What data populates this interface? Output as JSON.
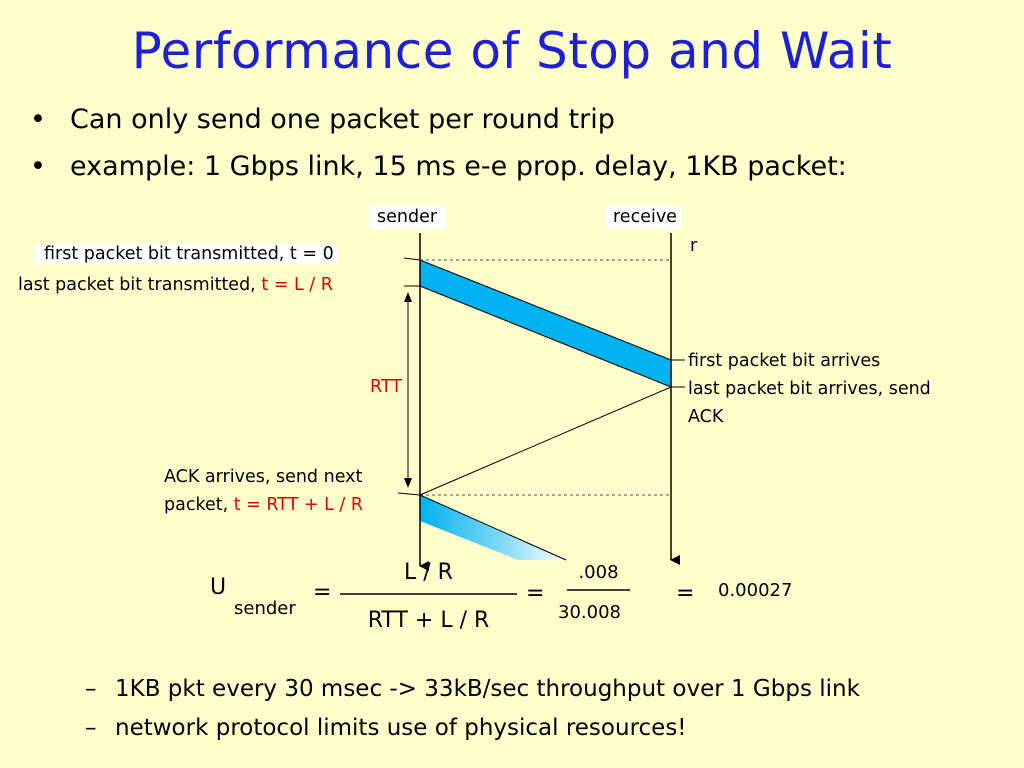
{
  "title": "Performance of Stop and Wait",
  "bullets": [
    "Can only send one packet per round trip",
    "example: 1 Gbps link, 15 ms e-e prop. delay, 1KB packet:"
  ],
  "bullet_glyph": "•",
  "diagram": {
    "sender_label": "sender",
    "receiver_label_line1": "receive",
    "receiver_label_line2": "r",
    "first_bit_tx": "first packet bit transmitted, t = 0",
    "last_bit_tx_prefix": "last packet bit transmitted, ",
    "last_bit_tx_time": "t = L / R",
    "rtt_label": "RTT",
    "first_bit_arrives": "first packet bit arrives",
    "last_bit_arrives_line1": "last packet bit arrives, send",
    "last_bit_arrives_line2": "ACK",
    "ack_arrives_line1": "ACK arrives, send next",
    "ack_arrives_prefix": "packet, ",
    "ack_arrives_time": "t = RTT + L / R",
    "packet_color": "#00B2F0"
  },
  "formula": {
    "u": "U",
    "u_sub": "sender",
    "eq1": "=",
    "numerator": "L / R",
    "denominator": "RTT + L / R",
    "eq2": "=",
    "num_value": ".008",
    "den_value": "30.008",
    "eq3": "=",
    "result": "0.00027"
  },
  "dash_glyph": "–",
  "subbullets": [
    "1KB pkt every 30 msec -> 33kB/sec throughput over 1 Gbps link",
    "network protocol limits use of physical resources!"
  ],
  "colors": {
    "background": "#FFFFCC",
    "title": "#1F1FD9",
    "highlight": "#E00000"
  }
}
